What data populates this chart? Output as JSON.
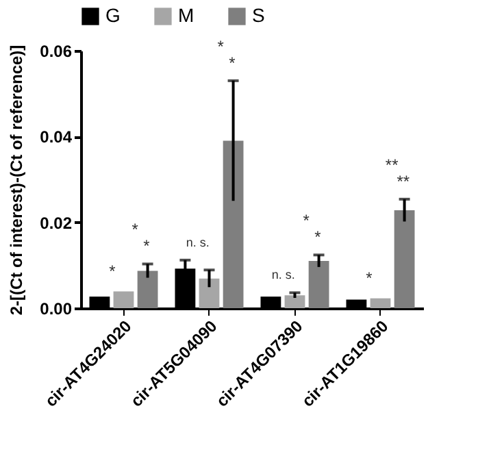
{
  "chart_data": {
    "type": "bar",
    "ylabel": "2-[(Ct of interest)-(Ct of reference)]",
    "categories": [
      "cir-AT4G24020",
      "cir-AT5G04090",
      "cir-AT4G07390",
      "cir-AT1G19860"
    ],
    "series": [
      {
        "name": "G",
        "color": "#000000",
        "values": [
          0.0027,
          0.0092,
          0.0027,
          0.002
        ],
        "errors": [
          null,
          0.002,
          null,
          null
        ]
      },
      {
        "name": "M",
        "color": "#a6a6a6",
        "values": [
          0.0039,
          0.0069,
          0.003,
          0.0023
        ],
        "errors": [
          null,
          0.002,
          0.0006,
          null
        ]
      },
      {
        "name": "S",
        "color": "#7f7f7f",
        "values": [
          0.0087,
          0.039,
          0.011,
          0.0228
        ],
        "errors": [
          0.0016,
          0.014,
          0.0014,
          0.0026
        ]
      }
    ],
    "ylim": [
      0,
      0.06
    ],
    "yticks": [
      {
        "value": 0,
        "label": "0.00"
      },
      {
        "value": 0.02,
        "label": "0.02"
      },
      {
        "value": 0.04,
        "label": "0.04"
      },
      {
        "value": 0.06,
        "label": "0.06"
      }
    ],
    "legend": "top",
    "grid": false,
    "annotations": [
      "*",
      "*",
      "*",
      "n. s.",
      "*",
      "*",
      "n. s.",
      "*",
      "*",
      "*",
      "**",
      "**"
    ]
  }
}
